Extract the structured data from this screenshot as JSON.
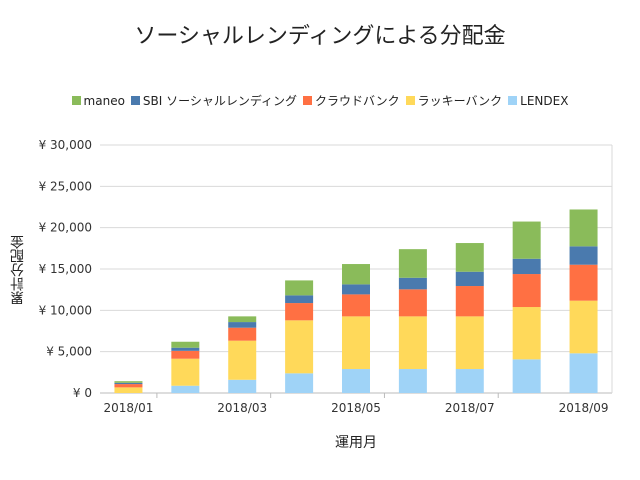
{
  "chart_data": {
    "type": "bar",
    "stacked": true,
    "title": "ソーシャルレンディングによる分配金",
    "xlabel": "運用月",
    "ylabel": "累計分配金",
    "categories": [
      "2018/01",
      "2018/02",
      "2018/03",
      "2018/04",
      "2018/05",
      "2018/06",
      "2018/07",
      "2018/08",
      "2018/09"
    ],
    "x_tick_labels": [
      "2018/01",
      "2018/03",
      "2018/05",
      "2018/07",
      "2018/09"
    ],
    "y_ticks": [
      0,
      5000,
      10000,
      15000,
      20000,
      25000,
      30000
    ],
    "y_tick_labels": [
      "¥ 0",
      "¥ 5,000",
      "¥ 10,000",
      "¥ 15,000",
      "¥ 20,000",
      "¥ 25,000",
      "¥ 30,000"
    ],
    "ylim": [
      0,
      30000
    ],
    "grid": true,
    "legend_position": "top",
    "series": [
      {
        "name": "LENDEX",
        "color": "#9fd3f7",
        "values": [
          0,
          880,
          1600,
          2380,
          2900,
          2900,
          2900,
          4070,
          4800
        ]
      },
      {
        "name": "ラッキーバンク",
        "color": "#ffd95a",
        "values": [
          680,
          3270,
          4730,
          6410,
          6370,
          6370,
          6370,
          6330,
          6370
        ]
      },
      {
        "name": "クラウドバンク",
        "color": "#ff7043",
        "values": [
          400,
          950,
          1570,
          2090,
          2660,
          3270,
          3670,
          3990,
          4350
        ]
      },
      {
        "name": "SBI ソーシャルレンディング",
        "color": "#4a7aae",
        "values": [
          150,
          380,
          680,
          930,
          1210,
          1400,
          1730,
          1850,
          2220
        ]
      },
      {
        "name": "maneo",
        "color": "#8abb5a",
        "values": [
          200,
          720,
          690,
          1810,
          2460,
          3460,
          3470,
          4500,
          4460
        ]
      }
    ],
    "legend_order": [
      "maneo",
      "SBI ソーシャルレンディング",
      "クラウドバンク",
      "ラッキーバンク",
      "LENDEX"
    ]
  }
}
